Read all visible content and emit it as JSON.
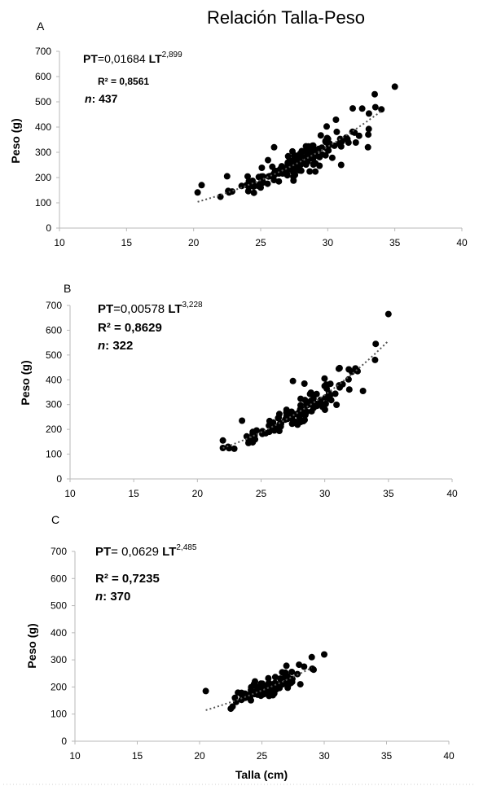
{
  "figure": {
    "title": "Relación Talla-Peso",
    "xlabel": "Talla (cm)"
  },
  "chart_data": [
    {
      "panel": "A",
      "type": "scatter",
      "ylabel": "Peso (g)",
      "xlim": [
        10,
        40
      ],
      "ylim": [
        0,
        700
      ],
      "x_ticks": [
        "10",
        "15",
        "20",
        "25",
        "30",
        "35",
        "40"
      ],
      "y_ticks": [
        "0",
        "100",
        "200",
        "300",
        "400",
        "500",
        "600",
        "700"
      ],
      "equation": {
        "prefix": "PT",
        "coef": "=0,01684 ",
        "var": "LT",
        "exp": "2,899"
      },
      "r2": {
        "label": "R² = ",
        "value": "0,8561"
      },
      "n": {
        "label": "n",
        "value": ": 437"
      },
      "trendline": {
        "a": 0.01684,
        "b": 2.899,
        "x_range": [
          20.3,
          34.0
        ]
      },
      "points_summary": {
        "n": 437,
        "x_range": [
          20.3,
          35.0
        ],
        "outliers": [
          [
            20.3,
            141
          ],
          [
            20.6,
            170
          ],
          [
            22.0,
            124
          ],
          [
            22.5,
            205
          ],
          [
            26.0,
            320
          ],
          [
            34.0,
            470
          ],
          [
            35.0,
            560
          ],
          [
            33.5,
            530
          ],
          [
            31.0,
            250
          ],
          [
            33.0,
            320
          ]
        ]
      },
      "grid": false
    },
    {
      "panel": "B",
      "type": "scatter",
      "ylabel": "Peso (g)",
      "xlim": [
        10,
        40
      ],
      "ylim": [
        0,
        700
      ],
      "x_ticks": [
        "10",
        "15",
        "20",
        "25",
        "30",
        "35",
        "40"
      ],
      "y_ticks": [
        "0",
        "100",
        "200",
        "300",
        "400",
        "500",
        "600",
        "700"
      ],
      "equation": {
        "prefix": "PT",
        "coef": "=0,00578 ",
        "var": "LT",
        "exp": "3,228"
      },
      "r2": {
        "label": "R² = ",
        "value": "0,8629"
      },
      "n": {
        "label": "n",
        "value": ": 322"
      },
      "trendline": {
        "a": 0.00578,
        "b": 3.228,
        "x_range": [
          22.0,
          35.0
        ]
      },
      "points_summary": {
        "n": 322,
        "x_range": [
          22.0,
          35.0
        ],
        "outliers": [
          [
            22.0,
            125
          ],
          [
            22.0,
            155
          ],
          [
            23.5,
            235
          ],
          [
            27.5,
            395
          ],
          [
            33.0,
            355
          ],
          [
            34.0,
            545
          ],
          [
            35.0,
            665
          ]
        ]
      },
      "grid": false
    },
    {
      "panel": "C",
      "type": "scatter",
      "ylabel": "Peso (g)",
      "xlim": [
        10,
        40
      ],
      "ylim": [
        0,
        700
      ],
      "x_ticks": [
        "10",
        "15",
        "20",
        "25",
        "30",
        "35",
        "40"
      ],
      "y_ticks": [
        "0",
        "100",
        "200",
        "300",
        "400",
        "500",
        "600",
        "700"
      ],
      "equation": {
        "prefix": "PT",
        "coef": "= 0,0629 ",
        "var": "LT",
        "exp": "2,485"
      },
      "r2": {
        "label": "R² = ",
        "value": "0,7235"
      },
      "n": {
        "label": "n",
        "value": ": 370"
      },
      "trendline": {
        "a": 0.0629,
        "b": 2.485,
        "x_range": [
          20.5,
          29.0
        ]
      },
      "points_summary": {
        "n": 370,
        "x_range": [
          20.5,
          30.0
        ],
        "outliers": [
          [
            20.5,
            185
          ],
          [
            22.5,
            120
          ],
          [
            29.0,
            310
          ],
          [
            30.0,
            320
          ]
        ]
      },
      "grid": false
    }
  ]
}
